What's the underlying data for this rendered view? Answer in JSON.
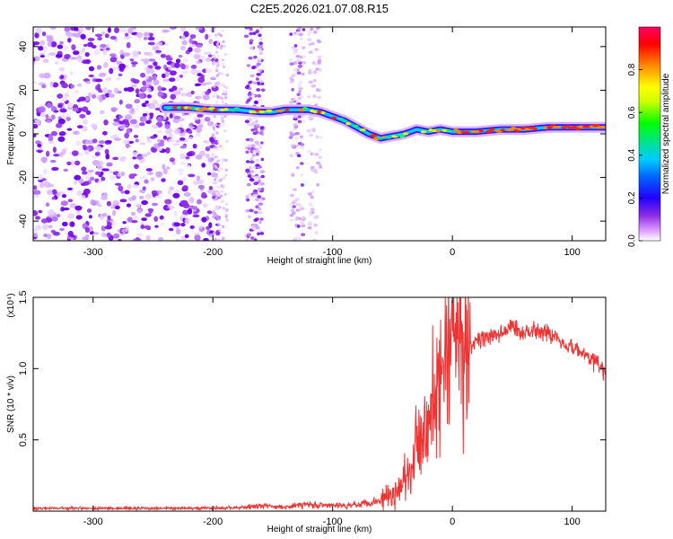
{
  "title": "C2E5.2026.021.07.08.R15",
  "colors": {
    "signal": "#ee3333",
    "axis": "#000000",
    "background": "#ffffff"
  },
  "chart_data": [
    {
      "type": "heatmap",
      "title": "C2E5.2026.021.07.08.R15",
      "xlabel": "Height of straight line (km)",
      "ylabel": "Frequency (Hz)",
      "xlim": [
        -350,
        128
      ],
      "ylim": [
        -49,
        49
      ],
      "xticks": [
        -300,
        -200,
        -100,
        0,
        100
      ],
      "yticks": [
        -40,
        -20,
        0,
        20,
        40
      ],
      "xtick_labels": [
        "-300",
        "-200",
        "-100",
        "0",
        "100"
      ],
      "ytick_labels": [
        "-40",
        "-20",
        "0",
        "20",
        "40"
      ],
      "ridge": {
        "x": [
          -240,
          -220,
          -200,
          -180,
          -160,
          -150,
          -140,
          -130,
          -120,
          -110,
          -100,
          -90,
          -80,
          -70,
          -60,
          -50,
          -40,
          -30,
          -20,
          -10,
          0,
          20,
          40,
          60,
          80,
          100,
          128
        ],
        "y": [
          12,
          12,
          11,
          11,
          10,
          10,
          11,
          11,
          11,
          10,
          8,
          6,
          3,
          0,
          -2,
          -1,
          0,
          2,
          1,
          2,
          1,
          1,
          2,
          2,
          3,
          3,
          3
        ]
      },
      "colorbar": {
        "label": "Normalized spectral amplitude",
        "range": [
          0,
          1
        ],
        "ticks": [
          0.0,
          0.2,
          0.4,
          0.6,
          0.8
        ],
        "tick_labels": [
          "0.0",
          "0.2",
          "0.4",
          "0.6",
          "0.8"
        ]
      }
    },
    {
      "type": "line",
      "xlabel": "Height of straight line (km)",
      "ylabel": "SNR (10 * v/v)",
      "scale_label": "(x10⁴)",
      "xlim": [
        -350,
        128
      ],
      "ylim": [
        0,
        1.5
      ],
      "xticks": [
        -300,
        -200,
        -100,
        0,
        100
      ],
      "yticks": [
        0.5,
        1.0,
        1.5
      ],
      "xtick_labels": [
        "-300",
        "-200",
        "-100",
        "0",
        "100"
      ],
      "ytick_labels": [
        "0.5",
        "1.0",
        "1.5"
      ],
      "series": [
        {
          "name": "SNR",
          "x": [
            -350,
            -300,
            -250,
            -200,
            -180,
            -170,
            -160,
            -150,
            -140,
            -130,
            -120,
            -110,
            -100,
            -90,
            -80,
            -70,
            -60,
            -50,
            -45,
            -40,
            -35,
            -30,
            -25,
            -20,
            -15,
            -10,
            -5,
            0,
            5,
            10,
            15,
            20,
            30,
            40,
            50,
            60,
            70,
            80,
            90,
            100,
            110,
            120,
            128
          ],
          "values": [
            0.02,
            0.02,
            0.02,
            0.02,
            0.025,
            0.03,
            0.04,
            0.03,
            0.03,
            0.04,
            0.05,
            0.04,
            0.04,
            0.04,
            0.05,
            0.06,
            0.08,
            0.12,
            0.15,
            0.25,
            0.3,
            0.45,
            0.6,
            0.7,
            0.8,
            0.9,
            1.0,
            1.1,
            1.15,
            1.05,
            1.15,
            1.2,
            1.22,
            1.24,
            1.3,
            1.25,
            1.28,
            1.25,
            1.2,
            1.15,
            1.1,
            1.05,
            0.95
          ]
        }
      ]
    }
  ]
}
